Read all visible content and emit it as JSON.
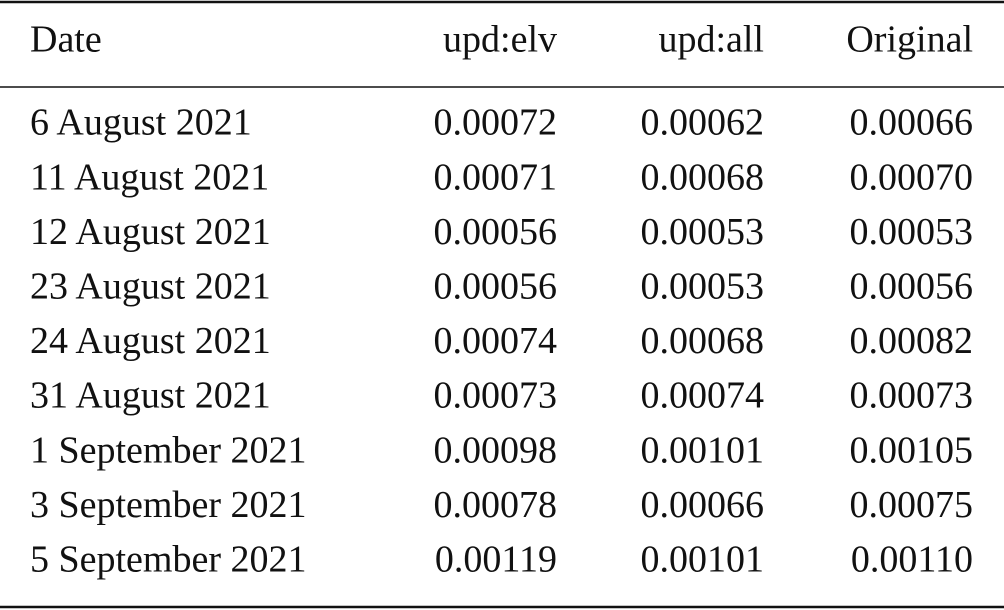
{
  "table": {
    "header": [
      "Date",
      "upd:elv",
      "upd:all",
      "Original"
    ],
    "rows": [
      [
        "6 August 2021",
        "0.00072",
        "0.00062",
        "0.00066"
      ],
      [
        "11 August 2021",
        "0.00071",
        "0.00068",
        "0.00070"
      ],
      [
        "12 August 2021",
        "0.00056",
        "0.00053",
        "0.00053"
      ],
      [
        "23 August 2021",
        "0.00056",
        "0.00053",
        "0.00056"
      ],
      [
        "24 August 2021",
        "0.00074",
        "0.00068",
        "0.00082"
      ],
      [
        "31 August 2021",
        "0.00073",
        "0.00074",
        "0.00073"
      ],
      [
        "1 September 2021",
        "0.00098",
        "0.00101",
        "0.00105"
      ],
      [
        "3 September 2021",
        "0.00078",
        "0.00066",
        "0.00075"
      ],
      [
        "5 September 2021",
        "0.00119",
        "0.00101",
        "0.00110"
      ]
    ]
  }
}
